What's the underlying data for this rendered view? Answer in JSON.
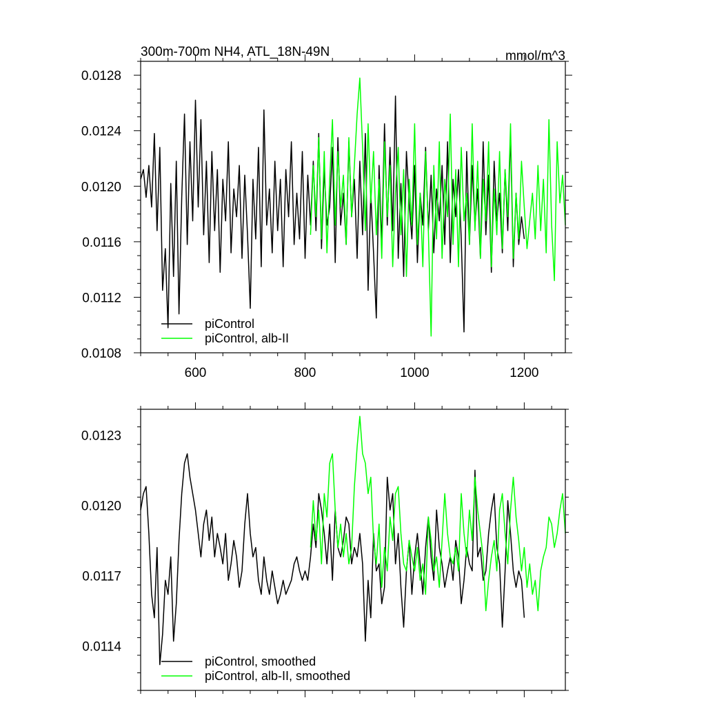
{
  "chart_data": [
    {
      "type": "line",
      "title": "300m-700m NH4, ATL_18N-49N",
      "units_label": "mmol/m^3",
      "xlim": [
        500,
        1275
      ],
      "ylim": [
        0.0108,
        0.0129
      ],
      "x_ticks": [
        600,
        800,
        1000,
        1200
      ],
      "x_tick_labels": [
        "600",
        "800",
        "1000",
        "1200"
      ],
      "y_ticks": [
        0.0108,
        0.0112,
        0.0116,
        0.012,
        0.0124,
        0.0128
      ],
      "y_tick_labels": [
        "0.0108",
        "0.0112",
        "0.0116",
        "0.0120",
        "0.0124",
        "0.0128"
      ],
      "legend_position": "bottom-left",
      "grid": false,
      "series": [
        {
          "name": "piControl",
          "color": "#000000",
          "x": [
            500,
            505,
            510,
            515,
            520,
            525,
            530,
            535,
            540,
            545,
            550,
            555,
            560,
            565,
            570,
            575,
            580,
            585,
            590,
            595,
            600,
            605,
            610,
            615,
            620,
            625,
            630,
            635,
            640,
            645,
            650,
            655,
            660,
            665,
            670,
            675,
            680,
            685,
            690,
            695,
            700,
            705,
            710,
            715,
            720,
            725,
            730,
            735,
            740,
            745,
            750,
            755,
            760,
            765,
            770,
            775,
            780,
            785,
            790,
            795,
            800,
            805,
            810,
            815,
            820,
            825,
            830,
            835,
            840,
            845,
            850,
            855,
            860,
            865,
            870,
            875,
            880,
            885,
            890,
            895,
            900,
            905,
            910,
            915,
            920,
            925,
            930,
            935,
            940,
            945,
            950,
            955,
            960,
            965,
            970,
            975,
            980,
            985,
            990,
            995,
            1000,
            1005,
            1010,
            1015,
            1020,
            1025,
            1030,
            1035,
            1040,
            1045,
            1050,
            1055,
            1060,
            1065,
            1070,
            1075,
            1080,
            1085,
            1090,
            1095,
            1100,
            1105,
            1110,
            1115,
            1120,
            1125,
            1130,
            1135,
            1140,
            1145,
            1150,
            1155,
            1160,
            1165,
            1170,
            1175,
            1180,
            1185,
            1190,
            1195,
            1200
          ],
          "values": [
            0.01205,
            0.01212,
            0.01192,
            0.01215,
            0.01185,
            0.01238,
            0.01168,
            0.01228,
            0.01125,
            0.01155,
            0.01098,
            0.01202,
            0.01135,
            0.01218,
            0.01108,
            0.01192,
            0.01252,
            0.01158,
            0.01232,
            0.01175,
            0.01262,
            0.01185,
            0.01248,
            0.01165,
            0.01218,
            0.01145,
            0.01225,
            0.01168,
            0.01212,
            0.01138,
            0.01205,
            0.01175,
            0.01232,
            0.01152,
            0.01198,
            0.01178,
            0.01215,
            0.01148,
            0.01208,
            0.01165,
            0.01112,
            0.01205,
            0.01162,
            0.01228,
            0.01142,
            0.01255,
            0.01172,
            0.01198,
            0.01152,
            0.01218,
            0.01168,
            0.01205,
            0.01142,
            0.01212,
            0.01178,
            0.01232,
            0.01158,
            0.01195,
            0.01162,
            0.01225,
            0.01148,
            0.01208,
            0.01172,
            0.01218,
            0.01168,
            0.01238,
            0.01155,
            0.01212,
            0.01172,
            0.01185,
            0.01228,
            0.01145,
            0.01235,
            0.01172,
            0.01195,
            0.01158,
            0.01232,
            0.01178,
            0.01205,
            0.01148,
            0.01218,
            0.01165,
            0.01238,
            0.01125,
            0.01195,
            0.01152,
            0.01105,
            0.01215,
            0.01158,
            0.01245,
            0.01172,
            0.01228,
            0.01168,
            0.01265,
            0.01148,
            0.01202,
            0.01135,
            0.01225,
            0.01188,
            0.01162,
            0.01215,
            0.01145,
            0.01195,
            0.01172,
            0.01228,
            0.01168,
            0.01208,
            0.01152,
            0.01198,
            0.01175,
            0.01215,
            0.01158,
            0.01232,
            0.01145,
            0.01205,
            0.01178,
            0.01212,
            0.01162,
            0.01095,
            0.01225,
            0.01158,
            0.01215,
            0.01172,
            0.01198,
            0.01148,
            0.01232,
            0.01165,
            0.01208,
            0.01138,
            0.01218,
            0.01175,
            0.01195,
            0.01152,
            0.01212,
            0.01168,
            0.01238,
            0.01142,
            0.01195,
            0.01158,
            0.01178,
            0.01162
          ]
        },
        {
          "name": "piControl, alb-II",
          "color": "#00ff00",
          "x": [
            810,
            815,
            820,
            825,
            830,
            835,
            840,
            845,
            850,
            855,
            860,
            865,
            870,
            875,
            880,
            885,
            890,
            895,
            900,
            905,
            910,
            915,
            920,
            925,
            930,
            935,
            940,
            945,
            950,
            955,
            960,
            965,
            970,
            975,
            980,
            985,
            990,
            995,
            1000,
            1005,
            1010,
            1015,
            1020,
            1025,
            1030,
            1035,
            1040,
            1045,
            1050,
            1055,
            1060,
            1065,
            1070,
            1075,
            1080,
            1085,
            1090,
            1095,
            1100,
            1105,
            1110,
            1115,
            1120,
            1125,
            1130,
            1135,
            1140,
            1145,
            1150,
            1155,
            1160,
            1165,
            1170,
            1175,
            1180,
            1185,
            1190,
            1195,
            1200,
            1205,
            1210,
            1215,
            1220,
            1225,
            1230,
            1235,
            1240,
            1245,
            1250,
            1255,
            1260,
            1265,
            1270,
            1275
          ],
          "values": [
            0.01165,
            0.01215,
            0.01178,
            0.01235,
            0.01162,
            0.01225,
            0.01152,
            0.01205,
            0.01248,
            0.01172,
            0.01225,
            0.01185,
            0.01208,
            0.01158,
            0.01235,
            0.01178,
            0.01215,
            0.01252,
            0.01278,
            0.01228,
            0.01168,
            0.01245,
            0.01188,
            0.01225,
            0.01165,
            0.01205,
            0.01148,
            0.01232,
            0.01178,
            0.01215,
            0.01142,
            0.01195,
            0.01228,
            0.01165,
            0.01212,
            0.01135,
            0.01205,
            0.01172,
            0.01245,
            0.01158,
            0.01195,
            0.01142,
            0.01225,
            0.01168,
            0.01092,
            0.01215,
            0.01162,
            0.01232,
            0.01148,
            0.01205,
            0.01178,
            0.01252,
            0.01158,
            0.01212,
            0.01142,
            0.01228,
            0.01175,
            0.01195,
            0.01158,
            0.01245,
            0.01168,
            0.01218,
            0.01148,
            0.01205,
            0.01175,
            0.01232,
            0.01142,
            0.01198,
            0.01165,
            0.01225,
            0.01155,
            0.01212,
            0.01178,
            0.01245,
            0.01148,
            0.01195,
            0.01162,
            0.01218,
            0.01185,
            0.01155,
            0.01175,
            0.01195,
            0.01162,
            0.01215,
            0.01168,
            0.01205,
            0.01152,
            0.01248,
            0.01172,
            0.01132,
            0.01232,
            0.01188,
            0.01208,
            0.01172
          ]
        }
      ]
    },
    {
      "type": "line",
      "title": "",
      "xlim": [
        500,
        1275
      ],
      "ylim": [
        0.01121,
        0.01241
      ],
      "x_ticks": [
        600,
        800,
        1000,
        1200
      ],
      "x_tick_labels": [],
      "y_ticks": [
        0.0114,
        0.0117,
        0.012,
        0.0123
      ],
      "y_tick_labels": [
        "0.0114",
        "0.0117",
        "0.0120",
        "0.0123"
      ],
      "legend_position": "bottom-left",
      "grid": false,
      "series": [
        {
          "name": "piControl, smoothed",
          "color": "#000000",
          "x": [
            500,
            505,
            510,
            515,
            520,
            525,
            530,
            535,
            540,
            545,
            550,
            555,
            560,
            565,
            570,
            575,
            580,
            585,
            590,
            595,
            600,
            605,
            610,
            615,
            620,
            625,
            630,
            635,
            640,
            645,
            650,
            655,
            660,
            665,
            670,
            675,
            680,
            685,
            690,
            695,
            700,
            705,
            710,
            715,
            720,
            725,
            730,
            735,
            740,
            745,
            750,
            755,
            760,
            765,
            770,
            775,
            780,
            785,
            790,
            795,
            800,
            805,
            810,
            815,
            820,
            825,
            830,
            835,
            840,
            845,
            850,
            855,
            860,
            865,
            870,
            875,
            880,
            885,
            890,
            895,
            900,
            905,
            910,
            915,
            920,
            925,
            930,
            935,
            940,
            945,
            950,
            955,
            960,
            965,
            970,
            975,
            980,
            985,
            990,
            995,
            1000,
            1005,
            1010,
            1015,
            1020,
            1025,
            1030,
            1035,
            1040,
            1045,
            1050,
            1055,
            1060,
            1065,
            1070,
            1075,
            1080,
            1085,
            1090,
            1095,
            1100,
            1105,
            1110,
            1115,
            1120,
            1125,
            1130,
            1135,
            1140,
            1145,
            1150,
            1155,
            1160,
            1165,
            1170,
            1175,
            1180,
            1185,
            1190,
            1195,
            1200
          ],
          "values": [
            0.01198,
            0.01205,
            0.01208,
            0.01188,
            0.01162,
            0.01152,
            0.01182,
            0.01132,
            0.01145,
            0.01168,
            0.01162,
            0.01178,
            0.01142,
            0.01158,
            0.01185,
            0.01205,
            0.01218,
            0.01222,
            0.01212,
            0.01205,
            0.01198,
            0.01188,
            0.01178,
            0.01192,
            0.01198,
            0.01185,
            0.01195,
            0.01178,
            0.01188,
            0.01182,
            0.01175,
            0.01188,
            0.01168,
            0.01175,
            0.01185,
            0.01178,
            0.01165,
            0.01172,
            0.01192,
            0.01205,
            0.01188,
            0.01178,
            0.01182,
            0.01168,
            0.01162,
            0.01178,
            0.01168,
            0.01162,
            0.01172,
            0.01165,
            0.01158,
            0.01162,
            0.01168,
            0.01162,
            0.01165,
            0.01168,
            0.01175,
            0.01178,
            0.01172,
            0.01168,
            0.01172,
            0.01168,
            0.01178,
            0.01192,
            0.01182,
            0.01205,
            0.01198,
            0.01188,
            0.01175,
            0.01192,
            0.01168,
            0.01198,
            0.01182,
            0.01178,
            0.01185,
            0.01195,
            0.01192,
            0.01175,
            0.01182,
            0.01178,
            0.01188,
            0.01175,
            0.01142,
            0.01168,
            0.01152,
            0.01188,
            0.01172,
            0.01175,
            0.01158,
            0.01165,
            0.01212,
            0.01198,
            0.01205,
            0.01175,
            0.01188,
            0.01165,
            0.01148,
            0.01172,
            0.01185,
            0.01162,
            0.01178,
            0.01188,
            0.01175,
            0.01162,
            0.01182,
            0.01195,
            0.01178,
            0.01168,
            0.01198,
            0.01182,
            0.01175,
            0.01165,
            0.01172,
            0.01178,
            0.01168,
            0.01185,
            0.01178,
            0.01158,
            0.01168,
            0.01182,
            0.01175,
            0.01172,
            0.01215,
            0.01178,
            0.01182,
            0.01168,
            0.01172,
            0.01188,
            0.01198,
            0.01205,
            0.01182,
            0.01175,
            0.01148,
            0.01172,
            0.01202,
            0.01188,
            0.01172,
            0.01165,
            0.01172,
            0.01168,
            0.01152
          ]
        },
        {
          "name": "piControl, alb-II, smoothed",
          "color": "#00ff00",
          "x": [
            810,
            815,
            820,
            825,
            830,
            835,
            840,
            845,
            850,
            855,
            860,
            865,
            870,
            875,
            880,
            885,
            890,
            895,
            900,
            905,
            910,
            915,
            920,
            925,
            930,
            935,
            940,
            945,
            950,
            955,
            960,
            965,
            970,
            975,
            980,
            985,
            990,
            995,
            1000,
            1005,
            1010,
            1015,
            1020,
            1025,
            1030,
            1035,
            1040,
            1045,
            1050,
            1055,
            1060,
            1065,
            1070,
            1075,
            1080,
            1085,
            1090,
            1095,
            1100,
            1105,
            1110,
            1115,
            1120,
            1125,
            1130,
            1135,
            1140,
            1145,
            1150,
            1155,
            1160,
            1165,
            1170,
            1175,
            1180,
            1185,
            1190,
            1195,
            1200,
            1205,
            1210,
            1215,
            1220,
            1225,
            1230,
            1235,
            1240,
            1245,
            1250,
            1255,
            1260,
            1265,
            1270,
            1275
          ],
          "values": [
            0.01182,
            0.01202,
            0.01185,
            0.01198,
            0.01175,
            0.01205,
            0.01195,
            0.01218,
            0.01222,
            0.01198,
            0.01182,
            0.01192,
            0.01178,
            0.01188,
            0.01175,
            0.01182,
            0.01208,
            0.01225,
            0.01238,
            0.01222,
            0.01218,
            0.01205,
            0.01212,
            0.01185,
            0.01175,
            0.01192,
            0.01165,
            0.01182,
            0.01172,
            0.01195,
            0.01185,
            0.01205,
            0.01208,
            0.01188,
            0.01175,
            0.01172,
            0.01185,
            0.01178,
            0.01172,
            0.01182,
            0.01168,
            0.01175,
            0.01162,
            0.01195,
            0.01185,
            0.01172,
            0.01178,
            0.01165,
            0.01185,
            0.01205,
            0.01188,
            0.01178,
            0.01175,
            0.01182,
            0.01172,
            0.01205,
            0.01188,
            0.01178,
            0.01198,
            0.01185,
            0.01212,
            0.01198,
            0.01188,
            0.01178,
            0.01155,
            0.01168,
            0.01178,
            0.01185,
            0.01172,
            0.01198,
            0.01205,
            0.01188,
            0.01175,
            0.01198,
            0.01212,
            0.01195,
            0.01185,
            0.01172,
            0.01182,
            0.01165,
            0.01175,
            0.01162,
            0.01168,
            0.01155,
            0.01172,
            0.01178,
            0.01182,
            0.01195,
            0.01192,
            0.01182,
            0.01188,
            0.01198,
            0.01205,
            0.01188
          ]
        }
      ]
    }
  ]
}
